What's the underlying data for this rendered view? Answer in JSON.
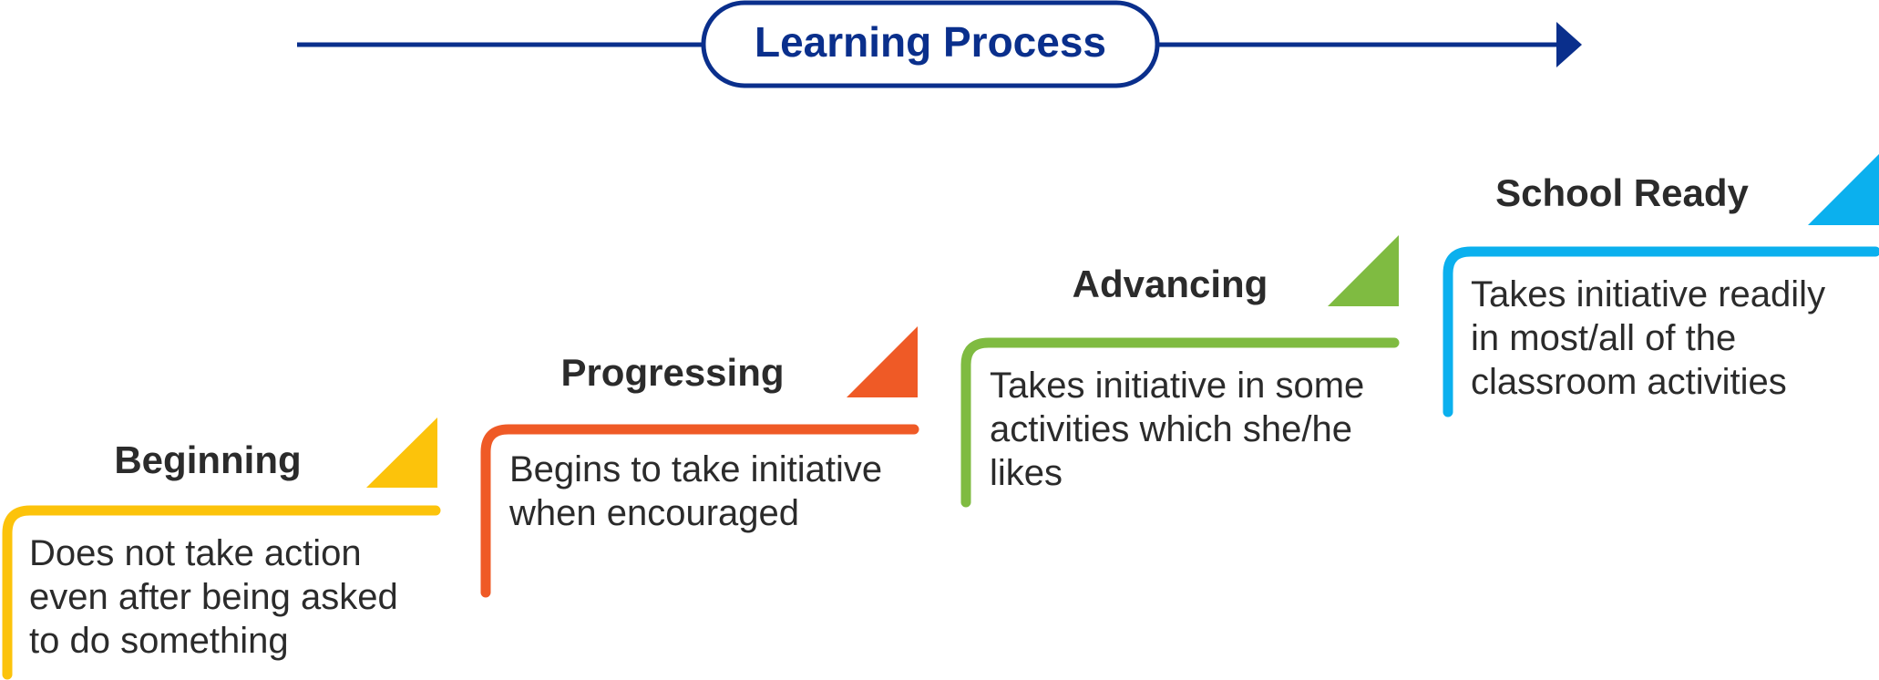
{
  "header": {
    "title": "Learning Process",
    "color": "#0a2f8c"
  },
  "stages": [
    {
      "name": "Beginning",
      "color": "#fcc30b",
      "description": [
        "Does not take action",
        "even after being asked",
        "to do something"
      ]
    },
    {
      "name": "Progressing",
      "color": "#ef5a26",
      "description": [
        "Begins to take initiative",
        "when encouraged"
      ]
    },
    {
      "name": "Advancing",
      "color": "#7fbb41",
      "description": [
        "Takes initiative in some",
        "activities which she/he",
        "likes"
      ]
    },
    {
      "name": "School Ready",
      "color": "#0bb0ee",
      "description": [
        "Takes initiative readily",
        "in most/all of the",
        "classroom activities"
      ]
    }
  ],
  "text_color": "#2b2b2b"
}
